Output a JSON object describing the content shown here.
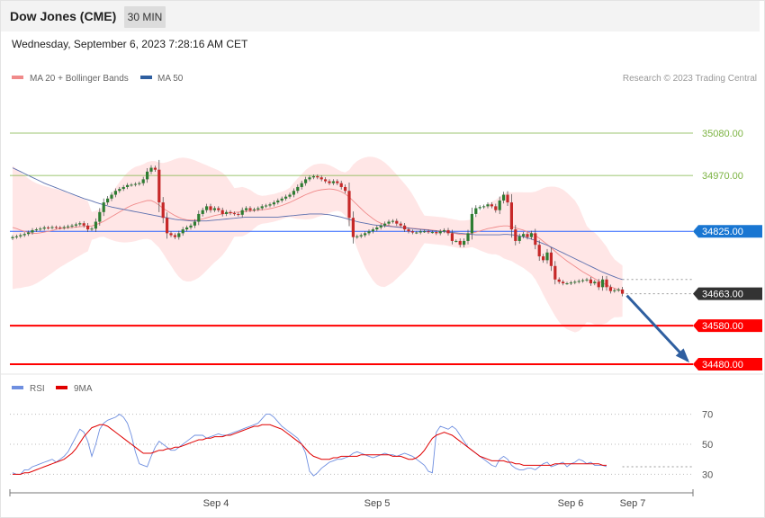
{
  "header": {
    "title": "Dow Jones (CME)",
    "timeframe": "30 MIN",
    "datetime": "Wednesday, September 6, 2023 7:28:16 AM CET"
  },
  "legend": {
    "ma20": "MA 20 + Bollinger Bands",
    "ma50": "MA 50",
    "credit": "Research © 2023 Trading Central"
  },
  "rsi_legend": {
    "rsi": "RSI",
    "ma9": "9MA"
  },
  "colors": {
    "bollinger_fill": "#ffe3e3",
    "ma20": "#f08a8a",
    "ma50": "#5b6fae",
    "up": "#2e7d32",
    "down": "#c62828",
    "pivot": "#2962ff",
    "support": "#ff0000",
    "resistance": "#7cb342",
    "rsi": "#6f8fe0",
    "rsi_ma": "#e00000",
    "arrow": "#2f5fa0"
  },
  "chart_data": [
    {
      "type": "candlestick",
      "title": "Dow Jones (CME)",
      "xlabel": "",
      "ylabel": "",
      "x_ticks": [
        "Sep 4",
        "Sep 5",
        "Sep 6",
        "Sep 7"
      ],
      "ylim": [
        34440,
        35180
      ],
      "levels": [
        {
          "value": 35080,
          "label": "35080.00",
          "role": "resistance"
        },
        {
          "value": 34970,
          "label": "34970.00",
          "role": "resistance"
        },
        {
          "value": 34825,
          "label": "34825.00",
          "role": "pivot"
        },
        {
          "value": 34663,
          "label": "34663.00",
          "role": "last"
        },
        {
          "value": 34580,
          "label": "34580.00",
          "role": "support"
        },
        {
          "value": 34480,
          "label": "34480.00",
          "role": "support"
        }
      ],
      "close": [
        34810,
        34812,
        34815,
        34818,
        34822,
        34828,
        34830,
        34832,
        34835,
        34834,
        34836,
        34835,
        34834,
        34836,
        34838,
        34840,
        34843,
        34846,
        34840,
        34830,
        34832,
        34850,
        34875,
        34900,
        34910,
        34920,
        34930,
        34935,
        34940,
        34945,
        34946,
        34948,
        34950,
        34960,
        34980,
        34990,
        34985,
        34900,
        34860,
        34820,
        34815,
        34810,
        34820,
        34830,
        34835,
        34840,
        34850,
        34870,
        34880,
        34890,
        34880,
        34885,
        34880,
        34870,
        34875,
        34872,
        34870,
        34868,
        34880,
        34885,
        34880,
        34882,
        34885,
        34890,
        34892,
        34895,
        34900,
        34905,
        34910,
        34915,
        34920,
        34930,
        34940,
        34950,
        34960,
        34965,
        34968,
        34965,
        34960,
        34955,
        34950,
        34955,
        34950,
        34940,
        34930,
        34860,
        34810,
        34812,
        34815,
        34820,
        34825,
        34830,
        34835,
        34840,
        34845,
        34850,
        34852,
        34845,
        34840,
        34830,
        34825,
        34822,
        34822,
        34825,
        34825,
        34823,
        34823,
        34820,
        34825,
        34828,
        34820,
        34800,
        34800,
        34790,
        34800,
        34820,
        34870,
        34885,
        34888,
        34890,
        34895,
        34890,
        34880,
        34905,
        34920,
        34900,
        34830,
        34800,
        34812,
        34818,
        34810,
        34820,
        34790,
        34760,
        34750,
        34770,
        34735,
        34700,
        34694,
        34690,
        34690,
        34692,
        34694,
        34696,
        34698,
        34700,
        34690,
        34694,
        34680,
        34700,
        34680,
        34670,
        34672,
        34674,
        34663
      ],
      "ma20": [
        34835,
        34832,
        34828,
        34825,
        34822,
        34820,
        34820,
        34821,
        34823,
        34825,
        34827,
        34830,
        34832,
        34833,
        34834,
        34835,
        34836,
        34837,
        34838,
        34838,
        34839,
        34842,
        34846,
        34851,
        34857,
        34863,
        34869,
        34875,
        34881,
        34887,
        34892,
        34896,
        34899,
        34902,
        34905,
        34905,
        34900,
        34893,
        34885,
        34878,
        34872,
        34866,
        34861,
        34857,
        34855,
        34854,
        34854,
        34855,
        34857,
        34860,
        34863,
        34866,
        34868,
        34870,
        34872,
        34873,
        34874,
        34875,
        34876,
        34877,
        34878,
        34879,
        34880,
        34881,
        34882,
        34884,
        34886,
        34889,
        34892,
        34896,
        34900,
        34905,
        34910,
        34915,
        34920,
        34924,
        34928,
        34931,
        34933,
        34934,
        34935,
        34934,
        34932,
        34928,
        34922,
        34914,
        34904,
        34894,
        34884,
        34874,
        34866,
        34858,
        34851,
        34846,
        34842,
        34840,
        34838,
        34837,
        34836,
        34835,
        34834,
        34833,
        34832,
        34831,
        34830,
        34829,
        34828,
        34827,
        34826,
        34825,
        34823,
        34821,
        34819,
        34817,
        34817,
        34818,
        34820,
        34823,
        34826,
        34829,
        34832,
        34834,
        34836,
        34838,
        34839,
        34839,
        34837,
        34834,
        34831,
        34828,
        34824,
        34820,
        34814,
        34807,
        34799,
        34791,
        34782,
        34773,
        34764,
        34756,
        34748,
        34741,
        34734,
        34727,
        34720,
        34714,
        34708,
        34702,
        34696,
        34691,
        34686,
        34681,
        34677,
        34673,
        34670
      ],
      "ma50": [
        34990,
        34985,
        34980,
        34975,
        34970,
        34965,
        34960,
        34955,
        34950,
        34946,
        34942,
        34938,
        34934,
        34930,
        34926,
        34922,
        34918,
        34914,
        34910,
        34907,
        34904,
        34900,
        34897,
        34894,
        34891,
        34888,
        34886,
        34884,
        34882,
        34880,
        34878,
        34876,
        34874,
        34872,
        34870,
        34868,
        34866,
        34864,
        34862,
        34860,
        34858,
        34856,
        34855,
        34854,
        34853,
        34852,
        34852,
        34852,
        34852,
        34852,
        34853,
        34854,
        34855,
        34856,
        34857,
        34858,
        34859,
        34860,
        34861,
        34862,
        34862,
        34862,
        34862,
        34862,
        34862,
        34862,
        34862,
        34862,
        34863,
        34864,
        34865,
        34866,
        34867,
        34868,
        34869,
        34870,
        34870,
        34870,
        34870,
        34869,
        34868,
        34866,
        34864,
        34862,
        34859,
        34856,
        34853,
        34850,
        34848,
        34846,
        34844,
        34842,
        34841,
        34840,
        34839,
        34838,
        34837,
        34836,
        34835,
        34834,
        34833,
        34832,
        34831,
        34830,
        34829,
        34828,
        34827,
        34826,
        34825,
        34824,
        34823,
        34822,
        34821,
        34820,
        34819,
        34818,
        34817,
        34816,
        34816,
        34816,
        34816,
        34816,
        34816,
        34816,
        34817,
        34817,
        34816,
        34815,
        34813,
        34811,
        34808,
        34805,
        34801,
        34797,
        34793,
        34789,
        34784,
        34779,
        34774,
        34769,
        34764,
        34759,
        34754,
        34749,
        34744,
        34739,
        34734,
        34729,
        34724,
        34719,
        34715,
        34711,
        34707,
        34703,
        34700
      ]
    },
    {
      "type": "line",
      "title": "RSI",
      "xlabel": "",
      "ylabel": "",
      "ylim": [
        20,
        80
      ],
      "y_ticks": [
        70,
        50,
        30
      ],
      "series": [
        {
          "name": "RSI",
          "values": [
            31,
            30,
            30,
            33,
            33,
            35,
            36,
            37,
            38,
            39,
            40,
            38,
            40,
            42,
            45,
            50,
            55,
            60,
            58,
            52,
            42,
            50,
            60,
            64,
            66,
            67,
            68,
            70,
            68,
            64,
            56,
            45,
            37,
            36,
            35,
            42,
            48,
            52,
            50,
            48,
            46,
            46,
            48,
            50,
            52,
            54,
            56,
            56,
            56,
            54,
            55,
            56,
            57,
            56,
            56,
            57,
            58,
            59,
            60,
            61,
            62,
            63,
            64,
            67,
            70,
            70,
            68,
            65,
            62,
            60,
            58,
            56,
            54,
            50,
            44,
            32,
            29,
            31,
            34,
            36,
            38,
            39,
            40,
            40,
            41,
            42,
            44,
            45,
            44,
            43,
            42,
            41,
            42,
            43,
            44,
            43,
            43,
            42,
            43,
            44,
            43,
            42,
            40,
            38,
            36,
            32,
            31,
            58,
            62,
            61,
            60,
            62,
            60,
            56,
            52,
            48,
            46,
            44,
            42,
            40,
            38,
            36,
            35,
            40,
            42,
            40,
            36,
            34,
            33,
            33,
            34,
            34,
            33,
            35,
            37,
            38,
            35,
            36,
            37,
            38,
            35,
            37,
            38,
            40,
            39,
            37,
            38,
            36,
            36,
            36,
            35
          ]
        },
        {
          "name": "9MA",
          "values": [
            30,
            30,
            30,
            31,
            31,
            32,
            33,
            34,
            35,
            36,
            37,
            38,
            39,
            40,
            42,
            44,
            47,
            51,
            55,
            58,
            61,
            62,
            63,
            63,
            62,
            60,
            58,
            56,
            54,
            52,
            50,
            48,
            46,
            44,
            44,
            44,
            45,
            46,
            46,
            47,
            47,
            48,
            48,
            49,
            50,
            51,
            52,
            53,
            53,
            54,
            54,
            55,
            55,
            55,
            56,
            56,
            57,
            58,
            59,
            60,
            61,
            62,
            62,
            63,
            63,
            63,
            62,
            61,
            60,
            58,
            56,
            54,
            52,
            50,
            47,
            44,
            42,
            41,
            40,
            40,
            40,
            41,
            41,
            42,
            42,
            42,
            42,
            42,
            43,
            43,
            43,
            43,
            43,
            43,
            43,
            43,
            42,
            42,
            42,
            41,
            40,
            40,
            41,
            43,
            46,
            50,
            54,
            56,
            57,
            58,
            57,
            56,
            54,
            52,
            50,
            48,
            46,
            44,
            42,
            41,
            40,
            39,
            39,
            39,
            39,
            38,
            38,
            37,
            37,
            36,
            36,
            36,
            36,
            36,
            36,
            36,
            36,
            37,
            37,
            37,
            37,
            37,
            37,
            37,
            37,
            37,
            37,
            37,
            37,
            36,
            36
          ]
        }
      ]
    }
  ]
}
